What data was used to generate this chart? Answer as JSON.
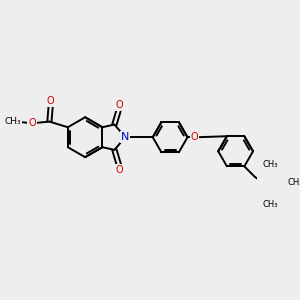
{
  "background_color": "#eeeeee",
  "bond_color": "#000000",
  "bond_width": 1.4,
  "N_color": "#0000cc",
  "O_color": "#cc0000",
  "font_size": 7.0,
  "figsize": [
    3.0,
    3.0
  ],
  "dpi": 100,
  "xlim": [
    0,
    10
  ],
  "ylim": [
    0,
    10
  ]
}
